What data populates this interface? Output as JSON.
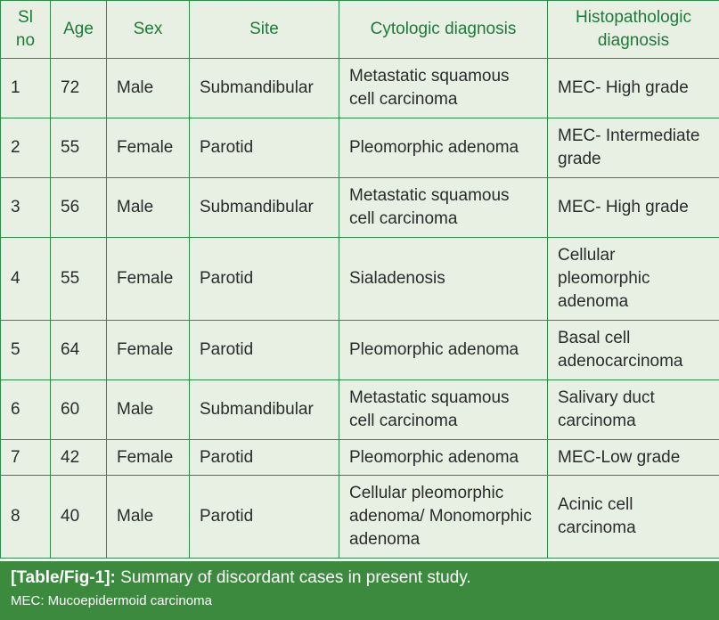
{
  "table": {
    "headers": [
      "Sl no",
      "Age",
      "Sex",
      "Site",
      "Cytologic diagnosis",
      "Histopathologic diagnosis"
    ],
    "rows": [
      [
        "1",
        "72",
        "Male",
        "Submandibular",
        "Metastatic squamous cell carcinoma",
        "MEC- High grade"
      ],
      [
        "2",
        "55",
        "Female",
        "Parotid",
        "Pleomorphic adenoma",
        "MEC- Intermediate grade"
      ],
      [
        "3",
        "56",
        "Male",
        "Submandibular",
        "Metastatic squamous cell carcinoma",
        "MEC- High grade"
      ],
      [
        "4",
        "55",
        "Female",
        "Parotid",
        "Sialadenosis",
        "Cellular pleomorphic adenoma"
      ],
      [
        "5",
        "64",
        "Female",
        "Parotid",
        "Pleomorphic adenoma",
        "Basal cell adenocarcinoma"
      ],
      [
        "6",
        "60",
        "Male",
        "Submandibular",
        "Metastatic squamous cell carcinoma",
        "Salivary duct carcinoma"
      ],
      [
        "7",
        "42",
        "Female",
        "Parotid",
        "Pleomorphic adenoma",
        "MEC-Low grade"
      ],
      [
        "8",
        "40",
        "Male",
        "Parotid",
        "Cellular pleomorphic adenoma/ Monomorphic adenoma",
        "Acinic cell carcinoma"
      ]
    ]
  },
  "caption": {
    "label": "[Table/Fig-1]:",
    "text": "Summary of discordant cases in present study.",
    "note": "MEC: Mucoepidermoid carcinoma"
  },
  "colors": {
    "border": "#2e8b4a",
    "header_text": "#1e7a3c",
    "cell_bg": "#e8f0e4",
    "caption_bg": "#3b8a3e"
  }
}
